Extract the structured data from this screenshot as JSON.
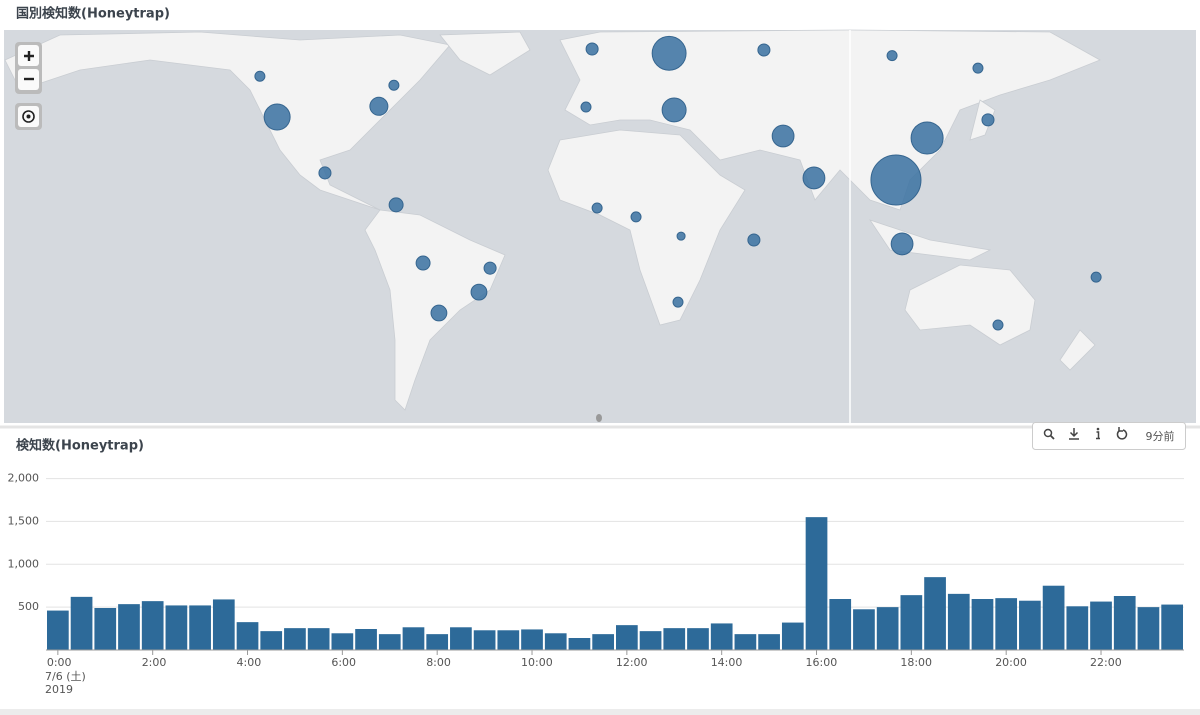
{
  "chart_data": [
    {
      "type": "map",
      "title": "国別検知数(Honeytrap)",
      "color": "#3f74a3",
      "points": [
        {
          "lon": -1.4,
          "lat": 54.4,
          "count": 580
        },
        {
          "lon": 26.3,
          "lat": 53.5,
          "count": 4600
        },
        {
          "lon": 60.4,
          "lat": 54.2,
          "count": 580
        },
        {
          "lon": 106.5,
          "lat": 53.0,
          "count": 400
        },
        {
          "lon": 137.4,
          "lat": 50.2,
          "count": 400
        },
        {
          "lon": -120.9,
          "lat": 48.3,
          "count": 400
        },
        {
          "lon": -72.7,
          "lat": 46.1,
          "count": 400
        },
        {
          "lon": -114.7,
          "lat": 37.6,
          "count": 2700
        },
        {
          "lon": -78.1,
          "lat": 40.6,
          "count": 1300
        },
        {
          "lon": -3.6,
          "lat": 40.4,
          "count": 400
        },
        {
          "lon": 28.1,
          "lat": 39.6,
          "count": 2300
        },
        {
          "lon": 67.3,
          "lat": 32.0,
          "count": 1900
        },
        {
          "lon": 119.1,
          "lat": 31.4,
          "count": 4100
        },
        {
          "lon": 141.0,
          "lat": 36.8,
          "count": 580
        },
        {
          "lon": 107.9,
          "lat": 17.7,
          "count": 10000
        },
        {
          "lon": -97.5,
          "lat": 20.1,
          "count": 580
        },
        {
          "lon": 78.4,
          "lat": 18.4,
          "count": 1900
        },
        {
          "lon": -71.9,
          "lat": 9.0,
          "count": 780
        },
        {
          "lon": 0.4,
          "lat": 7.9,
          "count": 400
        },
        {
          "lon": 14.4,
          "lat": 4.7,
          "count": 400
        },
        {
          "lon": 30.6,
          "lat": -2.2,
          "count": 260
        },
        {
          "lon": 56.8,
          "lat": -3.6,
          "count": 580
        },
        {
          "lon": 110.1,
          "lat": -5.0,
          "count": 1900
        },
        {
          "lon": -62.2,
          "lat": -11.8,
          "count": 780
        },
        {
          "lon": -38.1,
          "lat": -13.6,
          "count": 580
        },
        {
          "lon": 179.9,
          "lat": -16.7,
          "count": 400
        },
        {
          "lon": -42.1,
          "lat": -21.8,
          "count": 1000
        },
        {
          "lon": 29.5,
          "lat": -25.1,
          "count": 400
        },
        {
          "lon": -56.5,
          "lat": -28.6,
          "count": 1000
        },
        {
          "lon": 144.6,
          "lat": -32.3,
          "count": 400
        }
      ]
    },
    {
      "type": "bar",
      "title": "検知数(Honeytrap)",
      "color": "#2d6a99",
      "categories": [
        "0:00",
        null,
        null,
        null,
        "2:00",
        null,
        null,
        null,
        "4:00",
        null,
        null,
        null,
        "6:00",
        null,
        null,
        null,
        "8:00",
        null,
        null,
        null,
        "10:00",
        null,
        null,
        null,
        "12:00",
        null,
        null,
        null,
        "14:00",
        null,
        null,
        null,
        "16:00",
        null,
        null,
        null,
        "18:00",
        null,
        null,
        null,
        "20:00",
        null,
        null,
        null,
        "22:00",
        null,
        null,
        null
      ],
      "x_sublabels": [
        "7/6 (土)",
        "2019"
      ],
      "values": [
        460,
        620,
        490,
        535,
        570,
        520,
        520,
        590,
        325,
        220,
        255,
        255,
        195,
        245,
        185,
        265,
        185,
        265,
        230,
        230,
        240,
        195,
        140,
        185,
        290,
        220,
        255,
        255,
        310,
        185,
        185,
        320,
        1550,
        595,
        475,
        500,
        640,
        850,
        655,
        595,
        605,
        575,
        750,
        510,
        565,
        630,
        500,
        530
      ],
      "ylim": [
        0,
        2100
      ],
      "yticks": [
        500,
        {
          "value": 1000,
          "label": "1,000"
        },
        {
          "value": 1500,
          "label": "1,500"
        },
        {
          "value": 2000,
          "label": "2,000"
        }
      ],
      "grid": true
    }
  ],
  "toolbar": {
    "age": "9分前"
  }
}
